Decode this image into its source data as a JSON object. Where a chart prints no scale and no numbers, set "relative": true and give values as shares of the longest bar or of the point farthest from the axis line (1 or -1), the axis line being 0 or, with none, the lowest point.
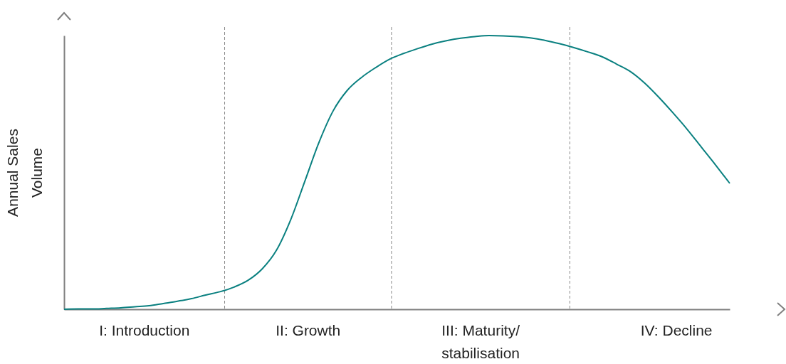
{
  "chart_data": {
    "type": "line",
    "relative": true,
    "ylabel": "Annual Sales\nVolume",
    "categories": [
      null,
      null,
      null,
      null,
      null,
      null,
      null,
      null,
      null,
      null,
      null,
      null,
      null,
      null,
      null,
      null,
      null,
      null,
      null,
      null,
      null,
      null,
      null,
      null,
      null,
      null,
      null,
      null,
      null,
      null,
      null,
      null,
      null,
      null,
      null,
      null,
      null,
      null,
      null,
      null,
      null,
      null,
      null,
      null,
      null,
      null,
      null,
      null
    ],
    "series": [
      {
        "color": "#0a8080",
        "values": [
          0,
          0.001,
          0.001,
          0.003,
          0.005,
          0.009,
          0.013,
          0.021,
          0.029,
          0.039,
          0.052,
          0.064,
          0.081,
          0.106,
          0.148,
          0.216,
          0.327,
          0.468,
          0.61,
          0.725,
          0.8,
          0.847,
          0.883,
          0.914,
          0.935,
          0.953,
          0.969,
          0.981,
          0.99,
          0.996,
          1,
          0.999,
          0.996,
          0.991,
          0.982,
          0.97,
          0.956,
          0.94,
          0.922,
          0.896,
          0.868,
          0.826,
          0.774,
          0.717,
          0.657,
          0.592,
          0.527,
          0.46
        ]
      }
    ],
    "annotations": [
      "I: Introduction",
      "II: Growth",
      "III: Maturity/\nstabilisation",
      "IV: Decline"
    ],
    "marker": "none",
    "line_style": "solid"
  }
}
